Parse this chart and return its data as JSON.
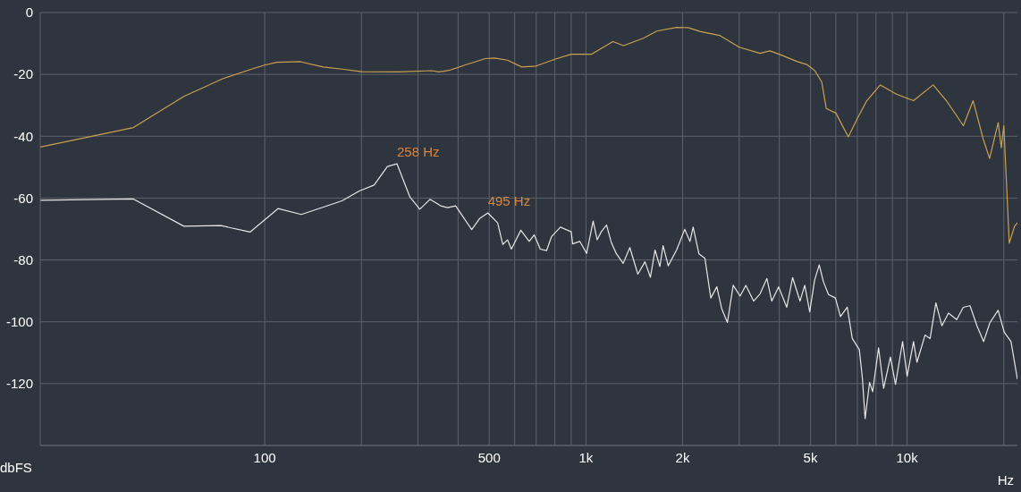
{
  "chart_data": {
    "type": "line",
    "xlabel": "Hz",
    "ylabel": "dbFS",
    "log": "x",
    "grid": true,
    "xlim": [
      20,
      22050
    ],
    "xticks": [
      {
        "value": 100,
        "label": "100"
      },
      {
        "value": 200,
        "label": null
      },
      {
        "value": 300,
        "label": null
      },
      {
        "value": 400,
        "label": null
      },
      {
        "value": 500,
        "label": "500"
      },
      {
        "value": 600,
        "label": null
      },
      {
        "value": 700,
        "label": null
      },
      {
        "value": 800,
        "label": null
      },
      {
        "value": 900,
        "label": null
      },
      {
        "value": 1000,
        "label": "1k"
      },
      {
        "value": 2000,
        "label": "2k"
      },
      {
        "value": 3000,
        "label": null
      },
      {
        "value": 4000,
        "label": null
      },
      {
        "value": 5000,
        "label": "5k"
      },
      {
        "value": 6000,
        "label": null
      },
      {
        "value": 7000,
        "label": null
      },
      {
        "value": 8000,
        "label": null
      },
      {
        "value": 9000,
        "label": null
      },
      {
        "value": 10000,
        "label": "10k"
      },
      {
        "value": 20000,
        "label": null
      }
    ],
    "ylim": [
      -140,
      0
    ],
    "yticks": [
      0,
      -20,
      -40,
      -60,
      -80,
      -100,
      -120,
      {
        "value": -140,
        "label": null
      }
    ],
    "annotations": [
      {
        "text": "258 Hz",
        "x": 258,
        "y": -48.9
      },
      {
        "text": "495 Hz",
        "x": 495,
        "y": -64.8
      }
    ],
    "series": [
      {
        "color": "#c9a152",
        "x": [
          20,
          39,
          56,
          74,
          91,
          100,
          109,
          129,
          152,
          174,
          200,
          261,
          331,
          349,
          378,
          420,
          486,
          519,
          570,
          631,
          700,
          800,
          900,
          1000,
          1039,
          1213,
          1310,
          1509,
          1662,
          1915,
          2080,
          2263,
          2606,
          3000,
          3484,
          3738,
          4000,
          4532,
          4870,
          5160,
          5420,
          5600,
          6000,
          6560,
          6980,
          7490,
          8250,
          9260,
          10470,
          12050,
          13250,
          14970,
          16050,
          17230,
          18060,
          19210,
          19640,
          20000,
          20800,
          21600,
          22050
        ],
        "values": [
          -43.5,
          -37.2,
          -27.1,
          -21.4,
          -18.3,
          -17,
          -16.1,
          -15.9,
          -17.6,
          -18.3,
          -19.1,
          -19.2,
          -18.8,
          -19.2,
          -18.6,
          -17,
          -14.9,
          -14.7,
          -15.4,
          -17.6,
          -17.3,
          -15.1,
          -13.5,
          -13.5,
          -13.5,
          -9.4,
          -10.7,
          -8.3,
          -6,
          -4.8,
          -4.9,
          -6.1,
          -7.4,
          -11.2,
          -13.2,
          -12.4,
          -13.5,
          -15.8,
          -16.8,
          -18.8,
          -22.4,
          -31,
          -32.5,
          -40.2,
          -34.5,
          -28.5,
          -23.4,
          -26.4,
          -28.5,
          -23.4,
          -28.5,
          -36.6,
          -28.5,
          -40.7,
          -47.2,
          -35.6,
          -43.7,
          -36.6,
          -74.6,
          -69.1,
          -68
        ]
      },
      {
        "color": "#e6e6e6",
        "x": [
          20,
          39,
          56,
          73,
          90,
          110,
          130,
          174,
          197,
          219,
          241,
          258,
          283,
          304,
          327,
          353,
          371,
          393,
          441,
          466,
          495,
          531,
          551,
          570,
          586,
          627,
          666,
          690,
          721,
          754,
          782,
          833,
          900,
          909,
          957,
          1005,
          1053,
          1084,
          1116,
          1159,
          1201,
          1244,
          1306,
          1370,
          1451,
          1527,
          1588,
          1641,
          1699,
          1739,
          1804,
          1915,
          2030,
          2108,
          2157,
          2248,
          2347,
          2448,
          2556,
          2647,
          2758,
          2874,
          3020,
          3147,
          3327,
          3484,
          3660,
          3790,
          3980,
          4220,
          4400,
          4640,
          4800,
          4975,
          5150,
          5325,
          5490,
          5690,
          5980,
          6200,
          6510,
          6750,
          7100,
          7260,
          7400,
          7640,
          7810,
          8150,
          8450,
          8870,
          9200,
          9680,
          10000,
          10470,
          10730,
          11370,
          11790,
          12290,
          12830,
          13450,
          14270,
          14960,
          15700,
          16500,
          17300,
          18100,
          19200,
          20070,
          21060,
          22050
        ],
        "values": [
          -60.7,
          -60.3,
          -69.1,
          -68.9,
          -71,
          -63.4,
          -65.3,
          -60.9,
          -57.7,
          -55.8,
          -49.8,
          -48.9,
          -59.6,
          -63.6,
          -60.4,
          -62.5,
          -63.1,
          -62.5,
          -70.2,
          -66.7,
          -64.8,
          -68,
          -75,
          -73.5,
          -76.5,
          -70.4,
          -74,
          -71.9,
          -76.5,
          -77,
          -72.4,
          -69.4,
          -70.9,
          -74.8,
          -74,
          -77.9,
          -67.4,
          -73.5,
          -70.9,
          -68.7,
          -74.5,
          -78,
          -81.1,
          -76,
          -84.6,
          -80.6,
          -85.6,
          -76.8,
          -82.1,
          -75.4,
          -81.9,
          -76.8,
          -70.1,
          -74,
          -69.4,
          -78,
          -79.5,
          -92.3,
          -88.7,
          -95.8,
          -100.2,
          -88.2,
          -91.7,
          -88.2,
          -93.3,
          -91,
          -86,
          -93.3,
          -88.7,
          -95.3,
          -85.7,
          -93.3,
          -88.2,
          -96.8,
          -86.6,
          -81.6,
          -87.1,
          -91.2,
          -92.3,
          -98.3,
          -95.3,
          -105.4,
          -109,
          -118.5,
          -131.3,
          -119.6,
          -122.6,
          -108.4,
          -121.5,
          -111.4,
          -120.2,
          -106.4,
          -117.6,
          -106.4,
          -113.1,
          -104.3,
          -105.4,
          -93.9,
          -101.3,
          -97.2,
          -99.3,
          -95.3,
          -94.8,
          -101.3,
          -106.4,
          -100.3,
          -96.3,
          -103.4,
          -106.4,
          -118.6
        ]
      }
    ]
  }
}
